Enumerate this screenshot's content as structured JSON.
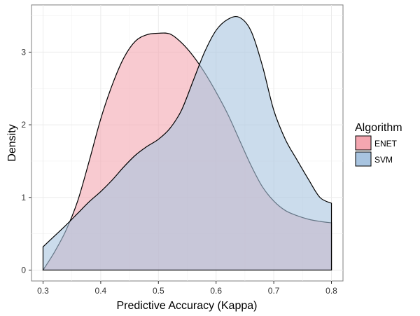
{
  "chart_data": {
    "type": "area",
    "subtype": "density",
    "xlabel": "Predictive Accuracy (Kappa)",
    "ylabel": "Density",
    "xlim": [
      0.28,
      0.82
    ],
    "ylim": [
      -0.15,
      3.65
    ],
    "x_ticks": [
      0.3,
      0.4,
      0.5,
      0.6,
      0.7,
      0.8
    ],
    "x_tick_labels": [
      "0.3",
      "0.4",
      "0.5",
      "0.6",
      "0.7",
      "0.8"
    ],
    "y_ticks": [
      0,
      1,
      2,
      3
    ],
    "y_tick_labels": [
      "0",
      "1",
      "2",
      "3"
    ],
    "grid": true,
    "legend": {
      "title": "Algorithm",
      "position": "right"
    },
    "series": [
      {
        "name": "ENET",
        "color": "#f4a6b0",
        "x": [
          0.3,
          0.32,
          0.34,
          0.36,
          0.38,
          0.4,
          0.42,
          0.44,
          0.46,
          0.48,
          0.5,
          0.52,
          0.54,
          0.56,
          0.58,
          0.6,
          0.62,
          0.64,
          0.66,
          0.68,
          0.7,
          0.72,
          0.74,
          0.76,
          0.78,
          0.8
        ],
        "y": [
          0.0,
          0.25,
          0.55,
          0.95,
          1.5,
          2.08,
          2.55,
          2.92,
          3.15,
          3.24,
          3.26,
          3.25,
          3.13,
          2.95,
          2.72,
          2.45,
          2.15,
          1.8,
          1.45,
          1.15,
          0.95,
          0.82,
          0.75,
          0.7,
          0.67,
          0.65
        ]
      },
      {
        "name": "SVM",
        "color": "#a8c4e0",
        "x": [
          0.3,
          0.32,
          0.34,
          0.36,
          0.38,
          0.4,
          0.42,
          0.44,
          0.46,
          0.48,
          0.5,
          0.52,
          0.54,
          0.56,
          0.58,
          0.6,
          0.62,
          0.64,
          0.66,
          0.68,
          0.7,
          0.72,
          0.74,
          0.76,
          0.78,
          0.8
        ],
        "y": [
          0.32,
          0.47,
          0.62,
          0.78,
          0.94,
          1.08,
          1.24,
          1.42,
          1.58,
          1.7,
          1.8,
          1.95,
          2.2,
          2.6,
          3.0,
          3.3,
          3.45,
          3.48,
          3.3,
          2.82,
          2.2,
          1.8,
          1.52,
          1.25,
          1.0,
          0.92
        ]
      }
    ]
  }
}
